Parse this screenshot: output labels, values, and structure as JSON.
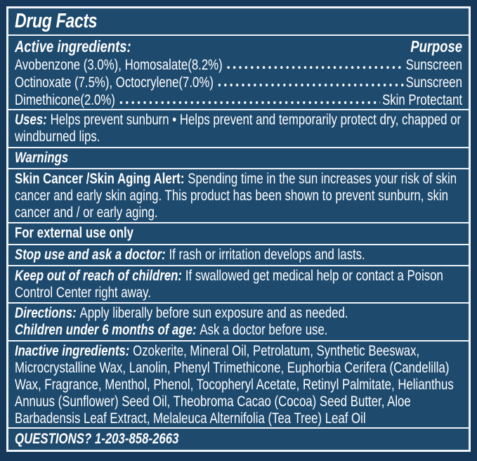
{
  "colors": {
    "panel_background": "#1e4a6e",
    "outer_background": "#16395b",
    "rule_lines": "#eef3f8",
    "text": "#ffffff"
  },
  "title": "Drug Facts",
  "active_ingredients": {
    "heading": "Active ingredients:",
    "purpose_heading": "Purpose",
    "rows": [
      {
        "name": "Avobenzone (3.0%), Homosalate(8.2%)",
        "purpose": "Sunscreen"
      },
      {
        "name": "Octinoxate (7.5%), Octocrylene(7.0%)",
        "purpose": "Sunscreen"
      },
      {
        "name": "Dimethicone(2.0%)",
        "purpose": "Skin Protectant"
      }
    ]
  },
  "uses": {
    "label": "Uses:",
    "text": "Helps prevent sunburn • Helps prevent and temporarily protect dry, chapped or windburned lips."
  },
  "warnings": {
    "heading": "Warnings"
  },
  "skin_cancer_alert": {
    "label": "Skin Cancer /Skin Aging Alert:",
    "text": "Spending time in the sun increases your risk of skin cancer and early skin aging. This product has been shown to prevent sunburn, skin cancer and / or early aging."
  },
  "external_use": {
    "text": "For external use only"
  },
  "stop_use": {
    "label": "Stop use and ask a doctor:",
    "text": "If rash or irritation develops and lasts."
  },
  "keep_out_of_reach": {
    "label": "Keep out of reach of children:",
    "text": "If swallowed get medical help or contact a Poison Control Center right away."
  },
  "directions": {
    "label": "Directions:",
    "text": "Apply liberally before sun exposure and as needed."
  },
  "children_under_6": {
    "label": "Children under 6 months of age:",
    "text": "Ask a doctor before use."
  },
  "inactive_ingredients": {
    "label": "Inactive ingredients:",
    "text": "Ozokerite, Mineral Oil, Petrolatum, Synthetic Beeswax, Microcrystalline Wax, Lanolin, Phenyl Trimethicone, Euphorbia Cerifera (Candelilla) Wax, Fragrance, Menthol, Phenol, Tocopheryl Acetate, Retinyl Palmitate, Helianthus Annuus (Sunflower) Seed Oil, Theobroma Cacao (Cocoa) Seed Butter, Aloe Barbadensis Leaf Extract, Melaleuca Alternifolia (Tea Tree) Leaf Oil"
  },
  "questions": {
    "text": "QUESTIONS? 1-203-858-2663"
  }
}
